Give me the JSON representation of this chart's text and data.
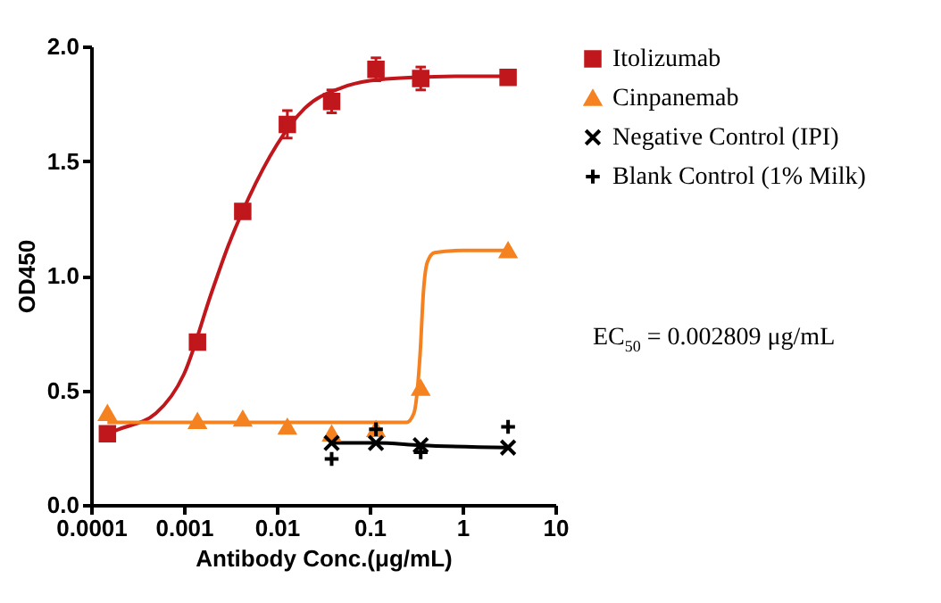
{
  "chart_data": {
    "type": "scatter",
    "xlabel": "Antibody Conc.(μg/mL)",
    "ylabel": "OD450",
    "log": "x",
    "legend": "right",
    "xlim": [
      0.0001,
      10
    ],
    "xticks": [
      0.0001,
      0.001,
      0.01,
      0.1,
      1,
      10
    ],
    "ylim": [
      0,
      2
    ],
    "yticks": [
      {
        "value": 0,
        "label": "0.0"
      },
      {
        "value": 0.5,
        "label": "0.5"
      },
      {
        "value": 1,
        "label": "1.0"
      },
      {
        "value": 1.5,
        "label": "1.5"
      },
      {
        "value": 2,
        "label": "2.0"
      }
    ],
    "annotations": [
      "EC$_{50}$ = 0.002809 μg/mL"
    ],
    "series": [
      {
        "name": "Itolizumab",
        "marker": "square",
        "color": "#c0171c",
        "x": [
          0.00015,
          0.0014,
          0.0043,
          0.013,
          0.039,
          0.117,
          0.355,
          3.1
        ],
        "values": [
          0.31,
          0.71,
          1.28,
          1.66,
          1.76,
          1.9,
          1.86,
          1.865
        ],
        "errors": [
          null,
          null,
          null,
          0.06,
          0.05,
          0.05,
          0.05,
          null
        ]
      },
      {
        "type": "line",
        "color": "#c0171c",
        "x": [
          0.00015,
          0.0002,
          0.0005,
          0.001,
          0.002,
          0.003,
          0.005,
          0.01,
          0.02,
          0.05,
          0.1,
          0.3,
          1,
          3.1
        ],
        "values": [
          0.31,
          0.33,
          0.4,
          0.57,
          0.93,
          1.13,
          1.34,
          1.57,
          1.73,
          1.82,
          1.85,
          1.865,
          1.87,
          1.87
        ]
      },
      {
        "name": "Cinpanemab",
        "marker": "triangle",
        "color": "#f58220",
        "x": [
          0.00015,
          0.0014,
          0.0043,
          0.013,
          0.039,
          0.117,
          0.355,
          3.1
        ],
        "values": [
          0.4,
          0.365,
          0.375,
          0.34,
          0.31,
          0.33,
          0.51,
          1.11
        ]
      },
      {
        "type": "line",
        "color": "#f58220",
        "x": [
          0.00015,
          0.01,
          0.25,
          0.3,
          0.35,
          0.38,
          0.42,
          0.5,
          1,
          3.1
        ],
        "values": [
          0.36,
          0.36,
          0.36,
          0.4,
          0.66,
          0.93,
          1.06,
          1.1,
          1.11,
          1.11
        ]
      },
      {
        "name": "Negative Control (IPI)",
        "type": "line",
        "marker": "cross",
        "color": "#000000",
        "x": [
          0.039,
          0.117,
          0.355,
          3.1
        ],
        "values": [
          0.27,
          0.27,
          0.26,
          0.25
        ]
      },
      {
        "name": "Blank Control (1% Milk)",
        "marker": "plus",
        "color": "#000000",
        "x": [
          0.039,
          0.117,
          0.355,
          3.1
        ],
        "values": [
          0.2,
          0.33,
          0.23,
          0.34
        ]
      }
    ]
  }
}
